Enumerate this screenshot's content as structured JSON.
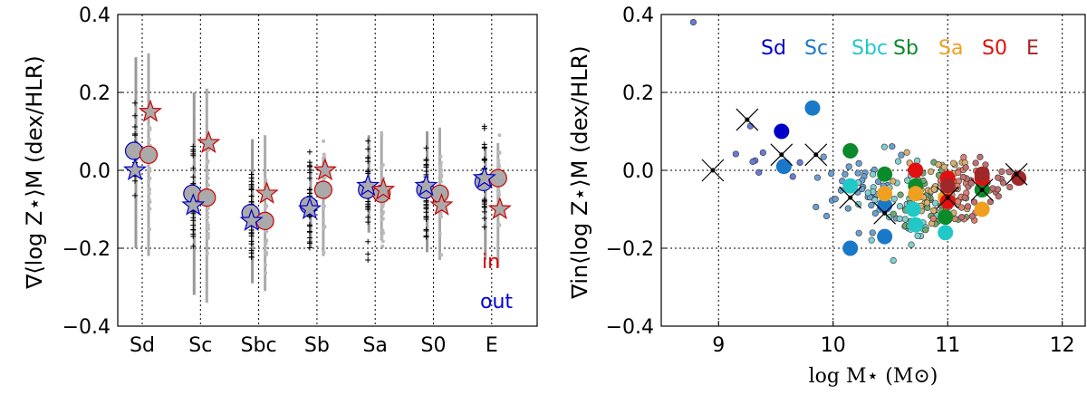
{
  "chart_data": [
    {
      "type": "scatter",
      "ylabel": "∇⟨log Z⋆⟩M  (dex/HLR)",
      "ylim": [
        -0.4,
        0.4
      ],
      "yticks": [
        "0.4",
        "0.2",
        "0.0",
        "−0.2",
        "−0.4"
      ],
      "categories": [
        "Sd",
        "Sc",
        "Sbc",
        "Sb",
        "Sa",
        "S0",
        "E"
      ],
      "grid": true,
      "annotations": [
        {
          "text": "in",
          "color": "#dd0000"
        },
        {
          "text": "out",
          "color": "#0000dd"
        }
      ],
      "series": [
        {
          "marker": "circle",
          "edge": "#0000cc",
          "values": [
            0.05,
            -0.06,
            -0.11,
            -0.09,
            -0.05,
            -0.05,
            -0.03
          ]
        },
        {
          "marker": "star",
          "edge": "#0000cc",
          "values": [
            0.0,
            -0.09,
            -0.13,
            -0.1,
            -0.04,
            -0.04,
            -0.02
          ]
        },
        {
          "marker": "circle",
          "edge": "#cc0000",
          "values": [
            0.04,
            -0.07,
            -0.13,
            -0.05,
            -0.06,
            -0.06,
            -0.02
          ]
        },
        {
          "marker": "star",
          "edge": "#cc0000",
          "values": [
            0.15,
            0.07,
            -0.06,
            0.0,
            -0.05,
            -0.09,
            -0.1
          ]
        }
      ],
      "error_bars": [
        {
          "category": "Sd",
          "low": -0.2,
          "high": 0.29
        },
        {
          "category": "Sc",
          "low": -0.32,
          "high": 0.2
        },
        {
          "category": "Sbc",
          "low": -0.29,
          "high": 0.08
        },
        {
          "category": "Sb",
          "low": -0.2,
          "high": 0.02
        },
        {
          "category": "Sa",
          "low": -0.16,
          "high": 0.09
        },
        {
          "category": "S0",
          "low": -0.21,
          "high": 0.1
        },
        {
          "category": "E",
          "low": -0.23,
          "high": 0.06
        }
      ]
    },
    {
      "type": "scatter",
      "ylabel": "∇in⟨log Z⋆⟩M  (dex/HLR)",
      "xlabel": "log M⋆ (M⊙)",
      "xlim": [
        8.5,
        12.2
      ],
      "ylim": [
        -0.4,
        0.4
      ],
      "xticks": [
        "9",
        "10",
        "11",
        "12"
      ],
      "yticks": [
        "0.4",
        "0.2",
        "0.0",
        "−0.2",
        "−0.4"
      ],
      "grid": true,
      "legend": [
        {
          "label": "Sd",
          "color": "#0000c8"
        },
        {
          "label": "Sc",
          "color": "#1a78c8"
        },
        {
          "label": "Sbc",
          "color": "#22c8c8"
        },
        {
          "label": "Sb",
          "color": "#0a8a2a"
        },
        {
          "label": "Sa",
          "color": "#f0a020"
        },
        {
          "label": "S0",
          "color": "#e01010"
        },
        {
          "label": "E",
          "color": "#a02828"
        }
      ],
      "big_points": [
        {
          "x": 9.55,
          "y": 0.1,
          "t": "Sd"
        },
        {
          "x": 9.82,
          "y": 0.16,
          "t": "Sc"
        },
        {
          "x": 9.57,
          "y": 0.01,
          "t": "Sc"
        },
        {
          "x": 10.15,
          "y": -0.2,
          "t": "Sc"
        },
        {
          "x": 10.45,
          "y": -0.17,
          "t": "Sc"
        },
        {
          "x": 10.45,
          "y": -0.09,
          "t": "Sc"
        },
        {
          "x": 10.7,
          "y": -0.1,
          "t": "Sbc"
        },
        {
          "x": 10.15,
          "y": -0.04,
          "t": "Sbc"
        },
        {
          "x": 10.72,
          "y": -0.14,
          "t": "Sbc"
        },
        {
          "x": 10.98,
          "y": -0.16,
          "t": "Sbc"
        },
        {
          "x": 10.15,
          "y": 0.05,
          "t": "Sb"
        },
        {
          "x": 10.45,
          "y": -0.01,
          "t": "Sb"
        },
        {
          "x": 10.72,
          "y": -0.04,
          "t": "Sb"
        },
        {
          "x": 10.98,
          "y": -0.12,
          "t": "Sb"
        },
        {
          "x": 11.3,
          "y": -0.05,
          "t": "Sb"
        },
        {
          "x": 10.45,
          "y": -0.06,
          "t": "Sa"
        },
        {
          "x": 10.72,
          "y": -0.06,
          "t": "Sa"
        },
        {
          "x": 10.98,
          "y": -0.07,
          "t": "Sa"
        },
        {
          "x": 11.3,
          "y": -0.1,
          "t": "Sa"
        },
        {
          "x": 10.72,
          "y": 0.0,
          "t": "S0"
        },
        {
          "x": 11.0,
          "y": -0.02,
          "t": "S0"
        },
        {
          "x": 11.3,
          "y": -0.02,
          "t": "S0"
        },
        {
          "x": 11.0,
          "y": -0.08,
          "t": "S0"
        },
        {
          "x": 11.3,
          "y": -0.01,
          "t": "E"
        },
        {
          "x": 11.62,
          "y": -0.02,
          "t": "E"
        },
        {
          "x": 11.0,
          "y": -0.04,
          "t": "E"
        }
      ],
      "x_marks": [
        {
          "x": 8.95,
          "y": 0.0
        },
        {
          "x": 9.25,
          "y": 0.13
        },
        {
          "x": 9.55,
          "y": 0.04
        },
        {
          "x": 9.85,
          "y": 0.04
        },
        {
          "x": 10.15,
          "y": -0.07
        },
        {
          "x": 10.45,
          "y": -0.11
        },
        {
          "x": 11.0,
          "y": -0.07
        },
        {
          "x": 11.3,
          "y": -0.05
        },
        {
          "x": 11.6,
          "y": -0.01
        }
      ]
    }
  ]
}
